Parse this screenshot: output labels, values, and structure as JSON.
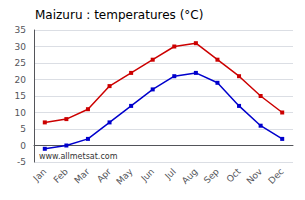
{
  "chart_data": {
    "type": "line",
    "title": "Maizuru : temperatures (°C)",
    "categories": [
      "Jan",
      "Feb",
      "Mar",
      "Apr",
      "May",
      "Jun",
      "Jul",
      "Aug",
      "Sep",
      "Oct",
      "Nov",
      "Dec"
    ],
    "series": [
      {
        "color": "#cc0000",
        "values": [
          7,
          8,
          11,
          18,
          22,
          26,
          30,
          31,
          26,
          21,
          15,
          10
        ]
      },
      {
        "color": "#0000cc",
        "values": [
          -1,
          0,
          2,
          7,
          12,
          17,
          21,
          22,
          19,
          12,
          6,
          2
        ]
      }
    ],
    "ylim": [
      -5,
      35
    ],
    "yticks": [
      -5,
      0,
      5,
      10,
      15,
      20,
      25,
      30,
      35
    ],
    "grid": true,
    "marker": "square",
    "annotation": "www.allmetsat.com"
  }
}
